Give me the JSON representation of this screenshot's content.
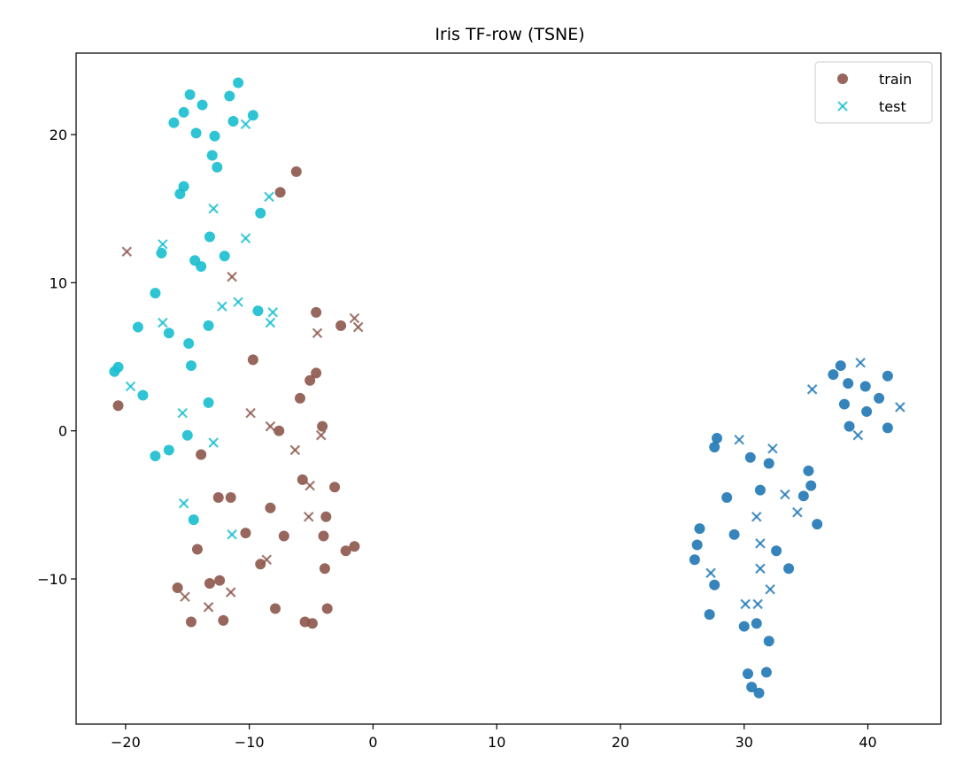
{
  "chart_data": {
    "type": "scatter",
    "title": "Iris TF-row (TSNE)",
    "xlabel": "",
    "ylabel": "",
    "xlim": [
      -24,
      45.9
    ],
    "ylim": [
      -19.8,
      25.5
    ],
    "xticks": [
      -20,
      -10,
      0,
      10,
      20,
      30,
      40
    ],
    "yticks": [
      -10,
      0,
      10,
      20
    ],
    "grid": false,
    "legend_position": "upper right",
    "legend": [
      {
        "label": "train",
        "marker": "circle",
        "color": "#8c564b"
      },
      {
        "label": "test",
        "marker": "x",
        "color": "#17becf"
      }
    ],
    "series": [
      {
        "group": "train",
        "marker": "circle",
        "color": "#17becf",
        "points": [
          [
            -16.1,
            20.8
          ],
          [
            -15.3,
            21.5
          ],
          [
            -14.8,
            22.7
          ],
          [
            -14.3,
            20.1
          ],
          [
            -13.8,
            22.0
          ],
          [
            -12.8,
            19.9
          ],
          [
            -11.6,
            22.6
          ],
          [
            -11.3,
            20.9
          ],
          [
            -10.9,
            23.5
          ],
          [
            -9.7,
            21.3
          ],
          [
            -13.0,
            18.6
          ],
          [
            -12.6,
            17.8
          ],
          [
            -15.6,
            16.0
          ],
          [
            -15.3,
            16.5
          ],
          [
            -9.1,
            14.7
          ],
          [
            -13.2,
            13.1
          ],
          [
            -17.1,
            12.0
          ],
          [
            -12.0,
            11.8
          ],
          [
            -14.4,
            11.5
          ],
          [
            -13.9,
            11.1
          ],
          [
            -17.6,
            9.3
          ],
          [
            -9.3,
            8.1
          ],
          [
            -19.0,
            7.0
          ],
          [
            -16.5,
            6.6
          ],
          [
            -13.3,
            7.1
          ],
          [
            -14.9,
            5.9
          ],
          [
            -14.7,
            4.4
          ],
          [
            -20.9,
            4.0
          ],
          [
            -20.6,
            4.3
          ],
          [
            -18.6,
            2.4
          ],
          [
            -13.3,
            1.9
          ],
          [
            -15.0,
            -0.3
          ],
          [
            -17.6,
            -1.7
          ],
          [
            -16.5,
            -1.3
          ],
          [
            -14.5,
            -6.0
          ]
        ]
      },
      {
        "group": "test",
        "marker": "x",
        "color": "#17becf",
        "points": [
          [
            -10.3,
            20.7
          ],
          [
            -12.9,
            15.0
          ],
          [
            -8.4,
            15.8
          ],
          [
            -17.0,
            12.6
          ],
          [
            -10.3,
            13.0
          ],
          [
            -17.0,
            7.3
          ],
          [
            -12.2,
            8.4
          ],
          [
            -10.9,
            8.7
          ],
          [
            -8.1,
            8.0
          ],
          [
            -8.3,
            7.3
          ],
          [
            -19.6,
            3.0
          ],
          [
            -15.4,
            1.2
          ],
          [
            -12.9,
            -0.8
          ],
          [
            -15.3,
            -4.9
          ],
          [
            -11.4,
            -7.0
          ]
        ]
      },
      {
        "group": "train",
        "marker": "circle",
        "color": "#8c564b",
        "points": [
          [
            -6.2,
            17.5
          ],
          [
            -7.5,
            16.1
          ],
          [
            -4.6,
            8.0
          ],
          [
            -2.6,
            7.1
          ],
          [
            -9.7,
            4.8
          ],
          [
            -4.6,
            3.9
          ],
          [
            -5.1,
            3.4
          ],
          [
            -5.9,
            2.2
          ],
          [
            -20.6,
            1.7
          ],
          [
            -7.6,
            0.0
          ],
          [
            -4.1,
            0.3
          ],
          [
            -13.9,
            -1.6
          ],
          [
            -5.7,
            -3.3
          ],
          [
            -3.1,
            -3.8
          ],
          [
            -12.5,
            -4.5
          ],
          [
            -11.5,
            -4.5
          ],
          [
            -8.3,
            -5.2
          ],
          [
            -3.8,
            -5.8
          ],
          [
            -10.3,
            -6.9
          ],
          [
            -7.2,
            -7.1
          ],
          [
            -4.0,
            -7.1
          ],
          [
            -14.2,
            -8.0
          ],
          [
            -2.2,
            -8.1
          ],
          [
            -1.5,
            -7.8
          ],
          [
            -9.1,
            -9.0
          ],
          [
            -3.9,
            -9.3
          ],
          [
            -12.4,
            -10.1
          ],
          [
            -13.2,
            -10.3
          ],
          [
            -15.8,
            -10.6
          ],
          [
            -7.9,
            -12.0
          ],
          [
            -3.7,
            -12.0
          ],
          [
            -14.7,
            -12.9
          ],
          [
            -12.1,
            -12.8
          ],
          [
            -5.5,
            -12.9
          ],
          [
            -4.9,
            -13.0
          ]
        ]
      },
      {
        "group": "test",
        "marker": "x",
        "color": "#8c564b",
        "points": [
          [
            -19.9,
            12.1
          ],
          [
            -11.4,
            10.4
          ],
          [
            -1.5,
            7.6
          ],
          [
            -1.2,
            7.0
          ],
          [
            -4.5,
            6.6
          ],
          [
            -9.9,
            1.2
          ],
          [
            -8.3,
            0.3
          ],
          [
            -6.3,
            -1.3
          ],
          [
            -4.2,
            -0.3
          ],
          [
            -5.1,
            -3.7
          ],
          [
            -5.2,
            -5.8
          ],
          [
            -8.6,
            -8.7
          ],
          [
            -15.2,
            -11.2
          ],
          [
            -13.3,
            -11.9
          ],
          [
            -11.5,
            -10.9
          ]
        ]
      },
      {
        "group": "train",
        "marker": "circle",
        "color": "#1f77b4",
        "points": [
          [
            37.8,
            4.4
          ],
          [
            37.2,
            3.8
          ],
          [
            38.4,
            3.2
          ],
          [
            39.8,
            3.0
          ],
          [
            41.6,
            3.7
          ],
          [
            40.9,
            2.2
          ],
          [
            38.1,
            1.8
          ],
          [
            39.9,
            1.3
          ],
          [
            38.5,
            0.3
          ],
          [
            41.6,
            0.2
          ],
          [
            27.8,
            -0.5
          ],
          [
            27.6,
            -1.1
          ],
          [
            30.5,
            -1.8
          ],
          [
            32.0,
            -2.2
          ],
          [
            35.2,
            -2.7
          ],
          [
            35.4,
            -3.7
          ],
          [
            31.3,
            -4.0
          ],
          [
            34.8,
            -4.4
          ],
          [
            28.6,
            -4.5
          ],
          [
            35.9,
            -6.3
          ],
          [
            26.4,
            -6.6
          ],
          [
            29.2,
            -7.0
          ],
          [
            32.6,
            -8.1
          ],
          [
            26.2,
            -7.7
          ],
          [
            26.0,
            -8.7
          ],
          [
            33.6,
            -9.3
          ],
          [
            27.6,
            -10.4
          ],
          [
            27.2,
            -12.4
          ],
          [
            31.0,
            -13.0
          ],
          [
            30.0,
            -13.2
          ],
          [
            32.0,
            -14.2
          ],
          [
            31.8,
            -16.3
          ],
          [
            30.3,
            -16.4
          ],
          [
            30.6,
            -17.3
          ],
          [
            31.2,
            -17.7
          ]
        ]
      },
      {
        "group": "test",
        "marker": "x",
        "color": "#1f77b4",
        "points": [
          [
            39.4,
            4.6
          ],
          [
            35.5,
            2.8
          ],
          [
            42.6,
            1.6
          ],
          [
            39.2,
            -0.3
          ],
          [
            29.6,
            -0.6
          ],
          [
            32.3,
            -1.2
          ],
          [
            33.3,
            -4.3
          ],
          [
            34.3,
            -5.5
          ],
          [
            31.0,
            -5.8
          ],
          [
            31.3,
            -7.6
          ],
          [
            27.3,
            -9.6
          ],
          [
            31.3,
            -9.3
          ],
          [
            32.1,
            -10.7
          ],
          [
            30.1,
            -11.7
          ],
          [
            31.1,
            -11.7
          ]
        ]
      }
    ]
  }
}
